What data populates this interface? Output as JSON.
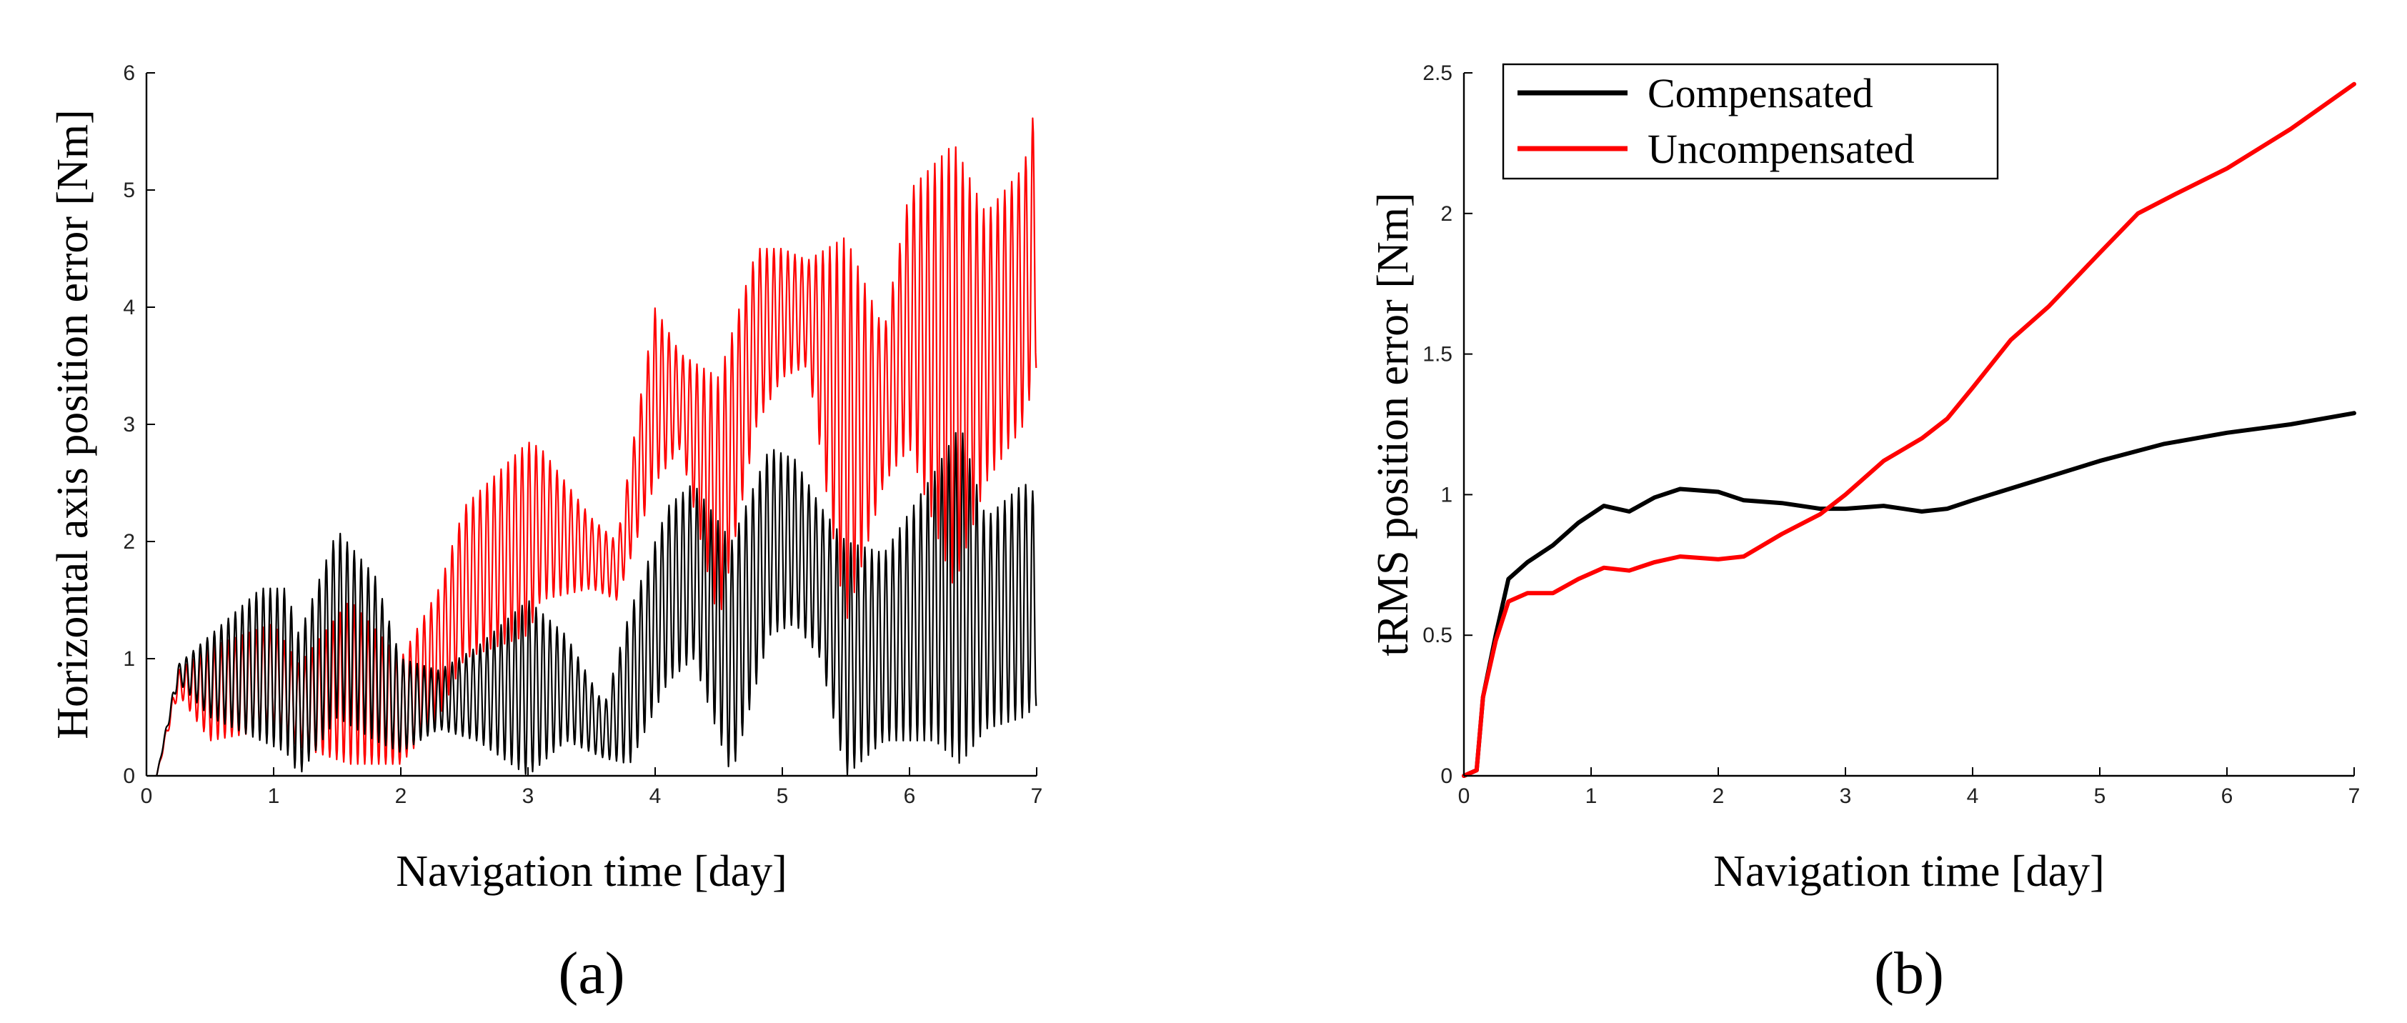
{
  "chart_data": [
    {
      "type": "line",
      "panel_label": "(a)",
      "title": "",
      "xlabel": "Navigation time [day]",
      "ylabel": "Horizontal axis position error [Nm]",
      "xlim": [
        0,
        7
      ],
      "ylim": [
        0,
        6
      ],
      "xticks": [
        "0",
        "1",
        "2",
        "3",
        "4",
        "5",
        "6",
        "7"
      ],
      "yticks": [
        "0",
        "1",
        "2",
        "3",
        "4",
        "5",
        "6"
      ],
      "legend": null,
      "grid": false,
      "series": [
        {
          "name": "Uncompensated",
          "color": "#ff0000",
          "style": "oscillating",
          "period_days": 0.055,
          "x": [
            0.08,
            0.25,
            0.5,
            1.0,
            1.2,
            1.6,
            2.0,
            2.3,
            2.5,
            3.0,
            3.1,
            3.5,
            3.7,
            4.0,
            4.2,
            4.5,
            4.8,
            5.0,
            5.2,
            5.5,
            5.8,
            6.0,
            6.35,
            6.6,
            6.9,
            7.0
          ],
          "upper": [
            0.0,
            0.9,
            1.1,
            1.3,
            0.95,
            1.5,
            1.0,
            1.6,
            2.3,
            2.85,
            2.8,
            2.2,
            2.0,
            4.0,
            3.6,
            3.4,
            4.5,
            4.5,
            4.4,
            4.6,
            3.8,
            5.0,
            5.4,
            4.8,
            5.2,
            5.8
          ],
          "lower": [
            0.0,
            0.7,
            0.3,
            0.4,
            0.25,
            0.1,
            0.1,
            0.5,
            1.0,
            1.2,
            1.5,
            1.6,
            1.5,
            2.5,
            2.8,
            1.3,
            3.0,
            3.4,
            3.5,
            1.3,
            2.5,
            2.8,
            1.6,
            2.5,
            3.0,
            3.5
          ]
        },
        {
          "name": "Compensated",
          "color": "#000000",
          "style": "oscillating",
          "period_days": 0.055,
          "x": [
            0.08,
            0.25,
            0.5,
            0.9,
            1.1,
            1.2,
            1.5,
            1.8,
            2.0,
            2.3,
            2.6,
            3.0,
            3.3,
            3.6,
            3.8,
            4.1,
            4.3,
            4.6,
            4.9,
            5.1,
            5.3,
            5.5,
            5.8,
            6.2,
            6.4,
            6.6,
            6.9,
            7.0
          ],
          "upper": [
            0.0,
            0.95,
            1.2,
            1.6,
            1.6,
            1.2,
            2.1,
            1.7,
            1.0,
            0.9,
            1.1,
            1.5,
            1.2,
            0.6,
            1.4,
            2.3,
            2.5,
            2.0,
            2.8,
            2.7,
            2.3,
            2.0,
            1.9,
            2.6,
            3.0,
            2.2,
            2.5,
            2.4
          ],
          "lower": [
            0.0,
            0.8,
            0.5,
            0.3,
            0.2,
            0.0,
            0.5,
            0.3,
            0.2,
            0.4,
            0.3,
            0.0,
            0.3,
            0.15,
            0.1,
            0.8,
            1.0,
            0.0,
            1.2,
            1.3,
            1.0,
            0.0,
            0.3,
            0.3,
            0.1,
            0.4,
            0.5,
            0.6
          ]
        }
      ]
    },
    {
      "type": "line",
      "panel_label": "(b)",
      "title": "",
      "xlabel": "Navigation time [day]",
      "ylabel": "tRMS position error [Nm]",
      "xlim": [
        0,
        7
      ],
      "ylim": [
        0,
        2.5
      ],
      "xticks": [
        "0",
        "1",
        "2",
        "3",
        "4",
        "5",
        "6",
        "7"
      ],
      "yticks": [
        "0",
        "0.5",
        "1",
        "1.5",
        "2",
        "2.5"
      ],
      "legend": "top-left",
      "grid": false,
      "series": [
        {
          "name": "Compensated",
          "color": "#000000",
          "x": [
            0.0,
            0.1,
            0.15,
            0.25,
            0.35,
            0.5,
            0.7,
            0.9,
            1.1,
            1.3,
            1.5,
            1.7,
            2.0,
            2.2,
            2.5,
            2.8,
            3.0,
            3.3,
            3.6,
            3.8,
            4.0,
            4.5,
            5.0,
            5.5,
            6.0,
            6.5,
            7.0
          ],
          "y": [
            0.0,
            0.02,
            0.28,
            0.5,
            0.7,
            0.76,
            0.82,
            0.9,
            0.96,
            0.94,
            0.99,
            1.02,
            1.01,
            0.98,
            0.97,
            0.95,
            0.95,
            0.96,
            0.94,
            0.95,
            0.98,
            1.05,
            1.12,
            1.18,
            1.22,
            1.25,
            1.29
          ]
        },
        {
          "name": "Uncompensated",
          "color": "#ff0000",
          "x": [
            0.0,
            0.1,
            0.15,
            0.25,
            0.35,
            0.5,
            0.7,
            0.9,
            1.1,
            1.3,
            1.5,
            1.7,
            2.0,
            2.2,
            2.5,
            2.8,
            3.0,
            3.3,
            3.6,
            3.8,
            4.0,
            4.3,
            4.6,
            5.0,
            5.3,
            5.6,
            6.0,
            6.5,
            7.0
          ],
          "y": [
            0.0,
            0.02,
            0.28,
            0.48,
            0.62,
            0.65,
            0.65,
            0.7,
            0.74,
            0.73,
            0.76,
            0.78,
            0.77,
            0.78,
            0.86,
            0.93,
            1.0,
            1.12,
            1.2,
            1.27,
            1.38,
            1.55,
            1.67,
            1.86,
            2.0,
            2.07,
            2.16,
            2.3,
            2.46
          ]
        }
      ]
    }
  ]
}
